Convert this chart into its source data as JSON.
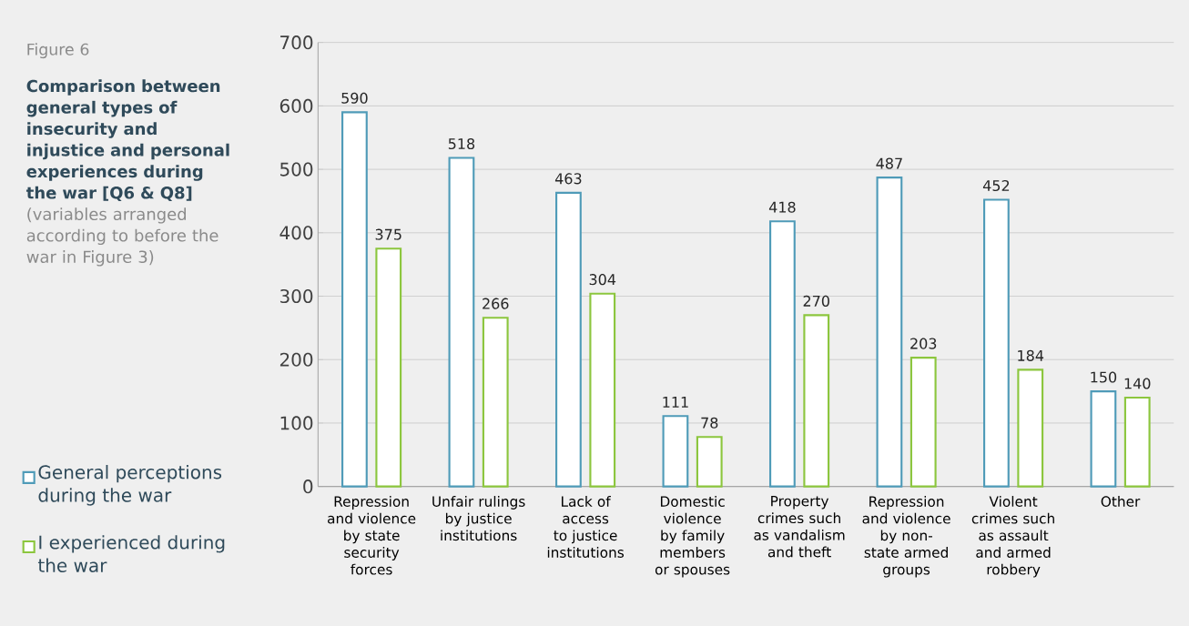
{
  "chart_data": {
    "type": "bar",
    "title": "Figure 6",
    "subtitle": "Comparison between general types of insecurity and injustice and personal experiences during the war [Q6 & Q8]",
    "annotations": [
      "(variables arranged according to before the war in Figure 3)"
    ],
    "categories": [
      "Repression and violence by state security forces",
      "Unfair rulings by justice institutions",
      "Lack of access to justice institutions",
      "Domestic violence by family members or spouses",
      "Property crimes such as vandalism and theft",
      "Repression and violence by non-state armed groups",
      "Violent crimes such as assault and armed robbery",
      "Other"
    ],
    "series": [
      {
        "name": "General perceptions during the war",
        "color": "#4f9bb8",
        "values": [
          590,
          518,
          463,
          111,
          418,
          487,
          452,
          150
        ]
      },
      {
        "name": "I experienced during the war",
        "color": "#8cc63e",
        "values": [
          375,
          266,
          304,
          78,
          270,
          203,
          184,
          140
        ]
      }
    ],
    "ylim": [
      0,
      700
    ],
    "yticks": [
      0,
      100,
      200,
      300,
      400,
      500,
      600,
      700
    ],
    "grid": "y",
    "legend": "bottom left",
    "data_labels": true
  }
}
